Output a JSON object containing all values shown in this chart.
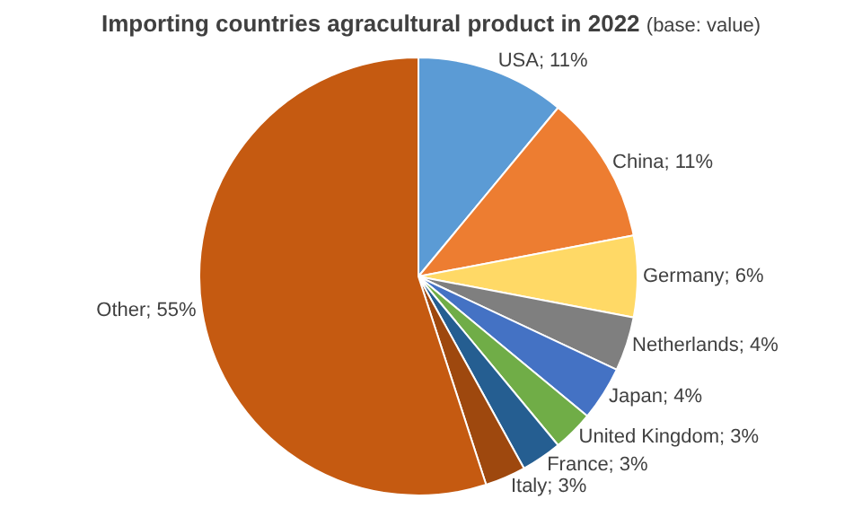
{
  "chart_data": {
    "type": "pie",
    "title": "Importing countries agracultural product in 2022",
    "subtitle": "(base: value)",
    "categories": [
      "USA",
      "China",
      "Germany",
      "Netherlands",
      "Japan",
      "United Kingdom",
      "France",
      "Italy",
      "Other"
    ],
    "values": [
      11,
      11,
      6,
      4,
      4,
      3,
      3,
      3,
      55
    ],
    "value_labels": [
      "11%",
      "11%",
      "6%",
      "4%",
      "4%",
      "3%",
      "3%",
      "3%",
      "55%"
    ],
    "colors": [
      "#5b9bd5",
      "#ed7d31",
      "#ffd966",
      "#7f7f7f",
      "#4472c4",
      "#70ad47",
      "#255e91",
      "#9e480e",
      "#c55a11"
    ],
    "legend": false
  }
}
